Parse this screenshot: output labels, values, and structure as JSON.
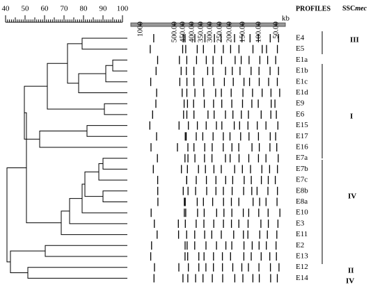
{
  "scale": {
    "ticks": [
      "40",
      "50",
      "60",
      "70",
      "80",
      "90",
      "100"
    ]
  },
  "gel": {
    "size_labels": [
      "1000",
      "500.00",
      "450.00",
      "400.00",
      "350.00",
      "300.00",
      "250.00",
      "200.00",
      "150.00",
      "100.00",
      "50.00"
    ],
    "unit": "kb"
  },
  "headers": {
    "profiles": "PROFILES",
    "ssc": "SSC",
    "mec": "mec"
  },
  "profiles": [
    "E4",
    "E5",
    "E1a",
    "E1b",
    "E1c",
    "E1d",
    "E9",
    "E6",
    "E15",
    "E17",
    "E16",
    "E7a",
    "E7b",
    "E7c",
    "E8b",
    "E8a",
    "E10",
    "E3",
    "E11",
    "E2",
    "E13",
    "E12",
    "E14"
  ],
  "groups": [
    "III",
    "I",
    "IV",
    "II",
    "IV"
  ]
}
